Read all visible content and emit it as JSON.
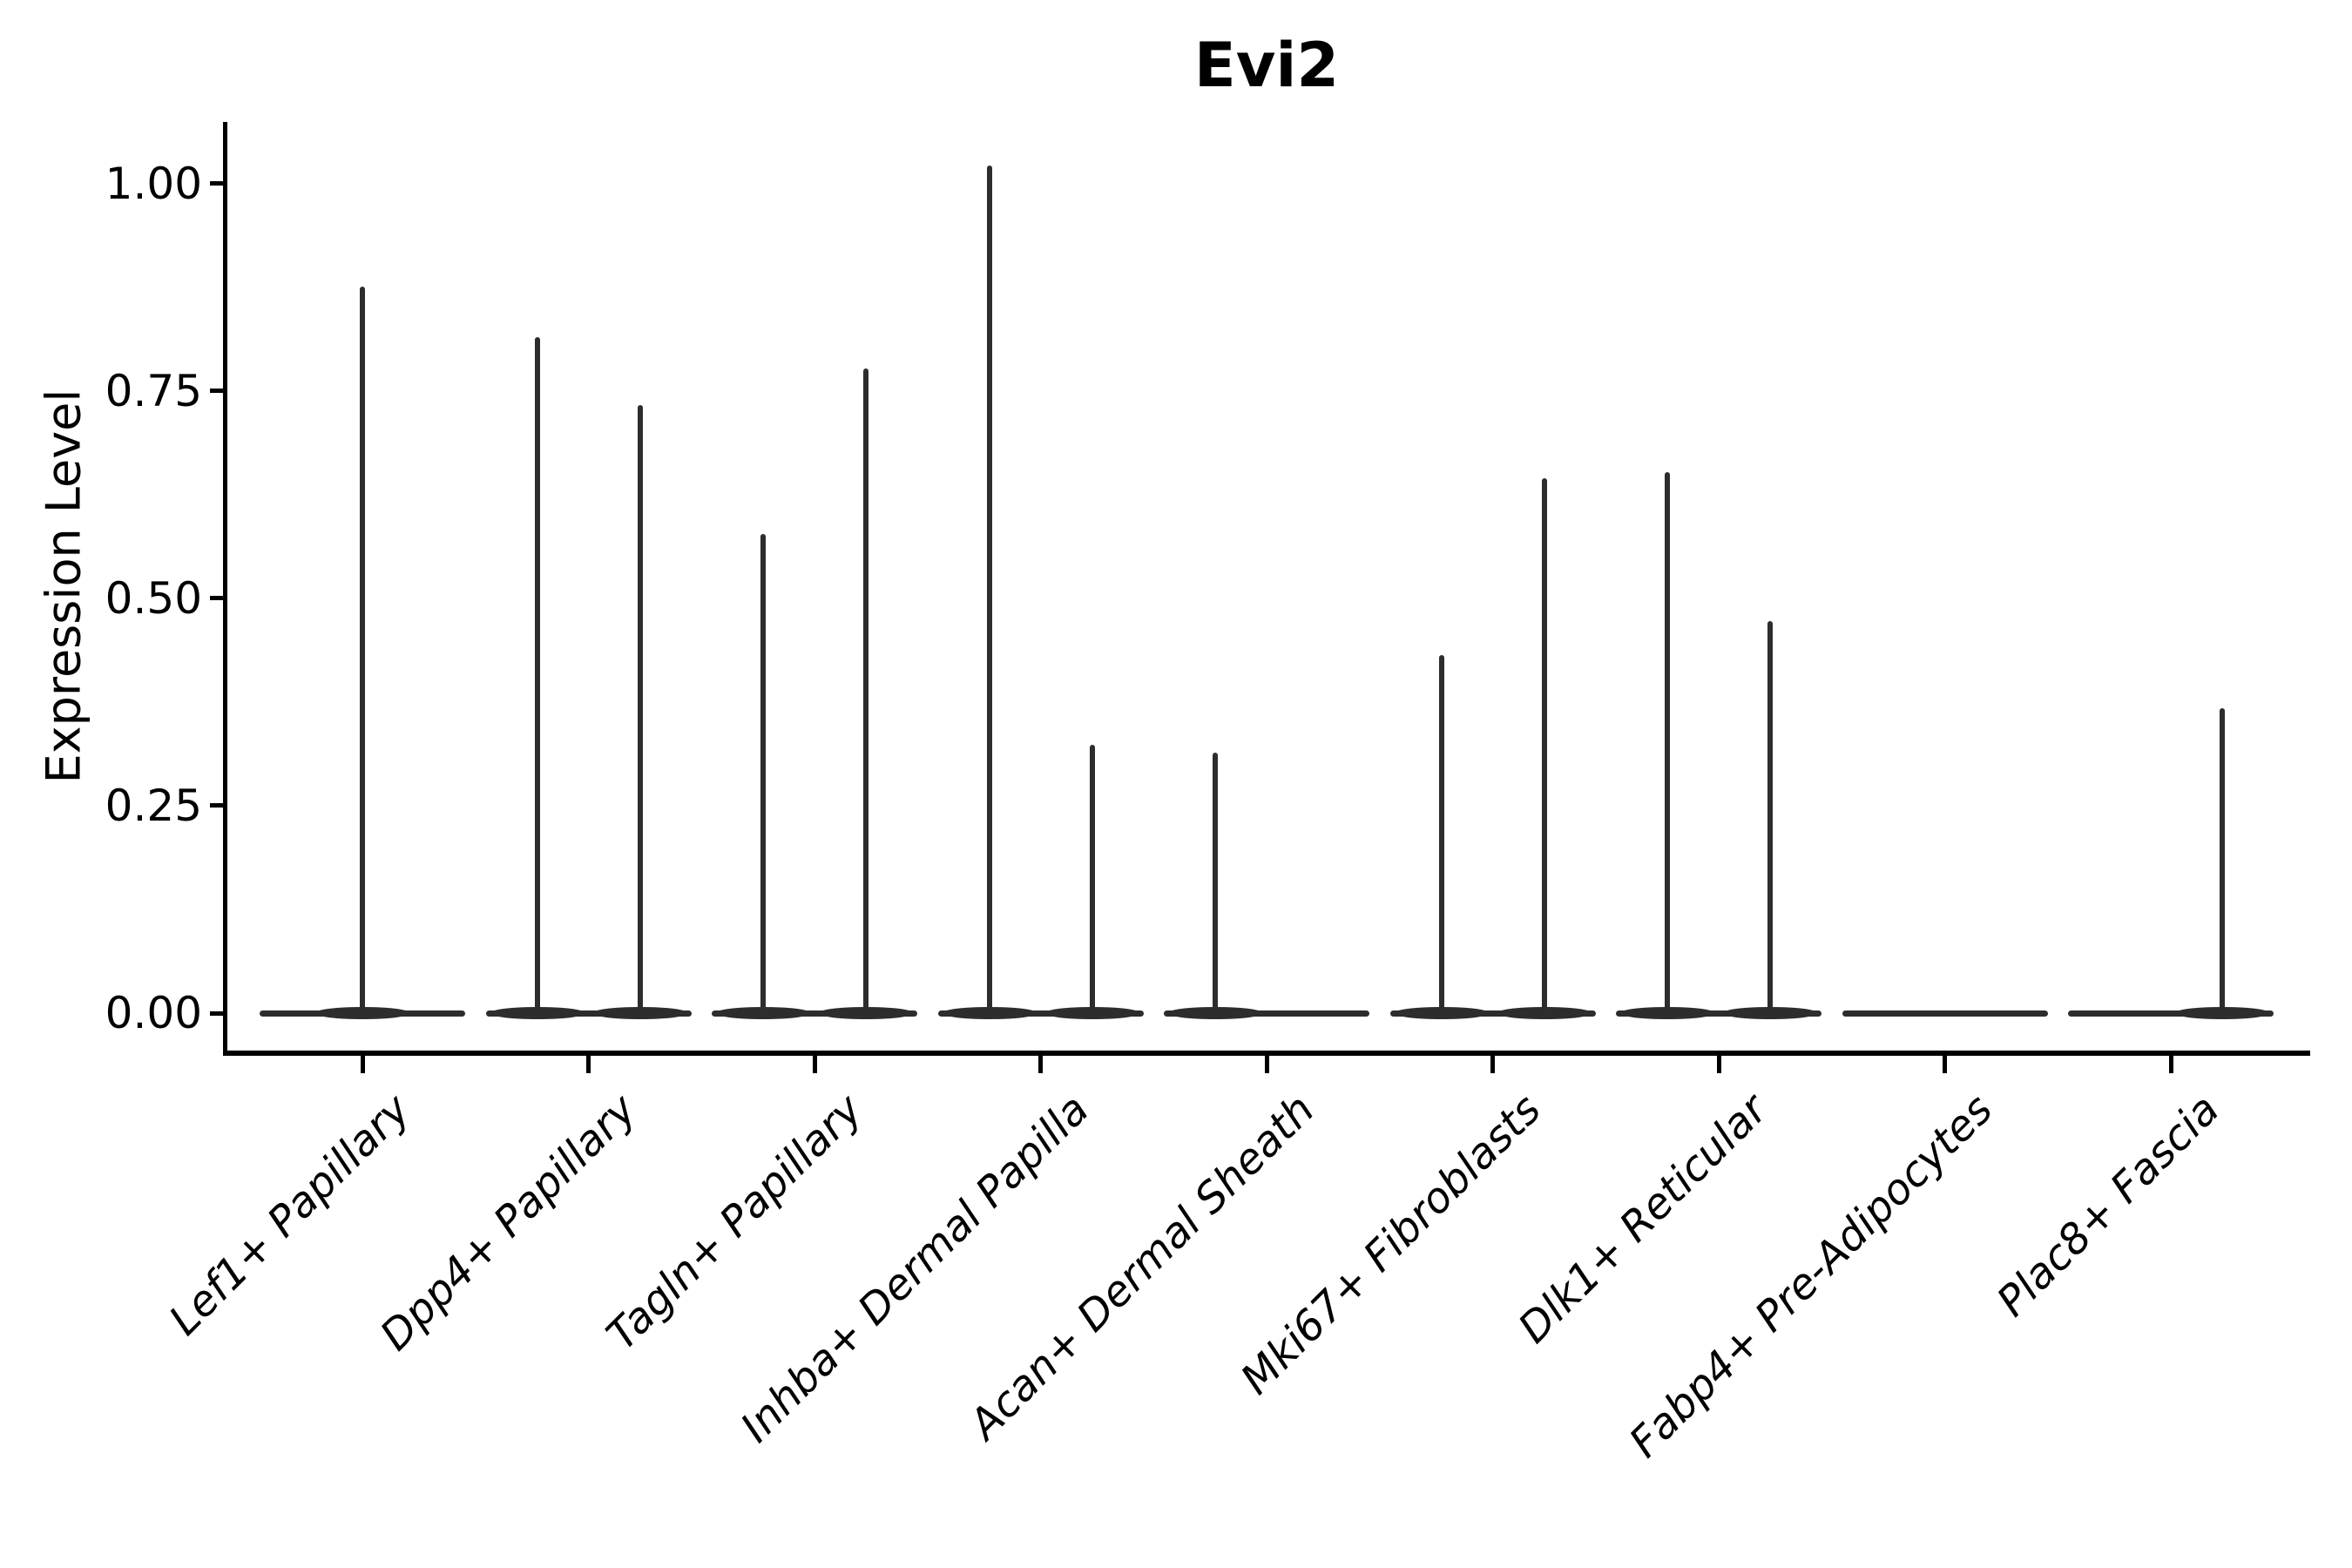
{
  "figure": {
    "title": "Evi2"
  },
  "chart_data": {
    "type": "violin",
    "title": "Evi2",
    "xlabel": "",
    "ylabel": "Expression Level",
    "ylim": [
      0,
      1.07
    ],
    "grid": false,
    "legend": null,
    "yticks": [
      0,
      0.25,
      0.5,
      0.75,
      1.0
    ],
    "ytick_labels": [
      "0.00",
      "0.25",
      "0.50",
      "0.75",
      "1.00"
    ],
    "categories": [
      "Lef1+ Papillary",
      "Dpp4+ Papillary",
      "Tagln+ Papillary",
      "Inhba+ Dermal Papilla",
      "Acan+ Dermal Sheath",
      "Mki67+ Fibroblasts",
      "Dlk1+ Reticular",
      "Fabp4+ Pre-Adipocytes",
      "Plac8+ Fascia"
    ],
    "description": "Violin plot of Evi2 expression; each category shows a flat density base at 0 with thin spikes rising to the maximum expression of each sub-group violin.",
    "violins": [
      {
        "category": "Lef1+ Papillary",
        "spikes": [
          {
            "position": "center",
            "max": 0.876
          }
        ]
      },
      {
        "category": "Dpp4+ Papillary",
        "spikes": [
          {
            "position": "left",
            "max": 0.815
          },
          {
            "position": "right",
            "max": 0.733
          }
        ]
      },
      {
        "category": "Tagln+ Papillary",
        "spikes": [
          {
            "position": "left",
            "max": 0.578
          },
          {
            "position": "right",
            "max": 0.777
          }
        ]
      },
      {
        "category": "Inhba+ Dermal Papilla",
        "spikes": [
          {
            "position": "left",
            "max": 1.022
          },
          {
            "position": "right",
            "max": 0.323
          }
        ]
      },
      {
        "category": "Acan+ Dermal Sheath",
        "spikes": [
          {
            "position": "left",
            "max": 0.314
          }
        ]
      },
      {
        "category": "Mki67+ Fibroblasts",
        "spikes": [
          {
            "position": "left",
            "max": 0.432
          },
          {
            "position": "right",
            "max": 0.645
          }
        ]
      },
      {
        "category": "Dlk1+ Reticular",
        "spikes": [
          {
            "position": "left",
            "max": 0.652
          },
          {
            "position": "right",
            "max": 0.472
          }
        ]
      },
      {
        "category": "Fabp4+ Pre-Adipocytes",
        "spikes": []
      },
      {
        "category": "Plac8+ Fascia",
        "spikes": [
          {
            "position": "right",
            "max": 0.368
          }
        ]
      }
    ],
    "colors": {
      "violin": "#2d2d2d",
      "axis": "#000000",
      "text": "#000000",
      "background": "#ffffff"
    }
  }
}
